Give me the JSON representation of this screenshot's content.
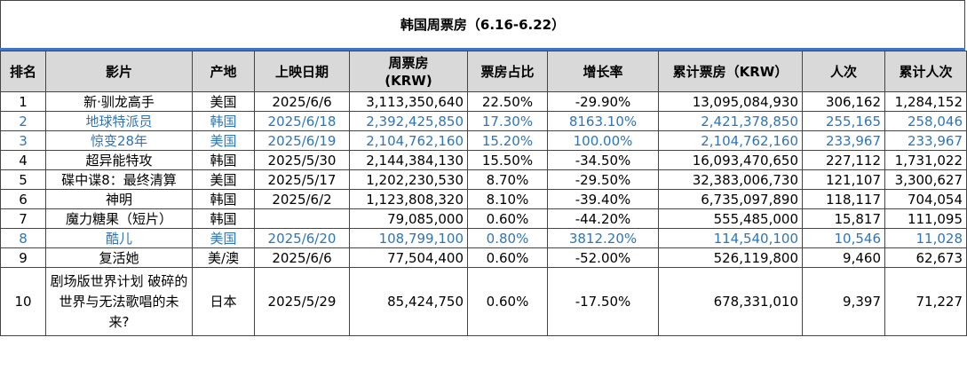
{
  "title": "韩国周票房（6.16-6.22）",
  "headers": {
    "rank": "排名",
    "film": "影片",
    "origin": "产地",
    "release": "上映日期",
    "weekly_line1": "周票房",
    "weekly_line2": "(KRW)",
    "share": "票房占比",
    "growth": "增长率",
    "cumulative": "累计票房（KRW）",
    "admissions": "人次",
    "cum_admissions": "累计人次"
  },
  "rows": [
    {
      "rank": "1",
      "film": "新·驯龙高手",
      "origin": "美国",
      "release": "2025/6/6",
      "weekly": "3,113,350,640",
      "share": "22.50%",
      "growth": "-29.90%",
      "cumulative": "13,095,084,930",
      "admissions": "306,162",
      "cum_admissions": "1,284,152",
      "new_entry": false
    },
    {
      "rank": "2",
      "film": "地球特派员",
      "origin": "韩国",
      "release": "2025/6/18",
      "weekly": "2,392,425,850",
      "share": "17.30%",
      "growth": "8163.10%",
      "cumulative": "2,421,378,850",
      "admissions": "255,165",
      "cum_admissions": "258,046",
      "new_entry": true
    },
    {
      "rank": "3",
      "film": "惊变28年",
      "origin": "美国",
      "release": "2025/6/19",
      "weekly": "2,104,762,160",
      "share": "15.20%",
      "growth": "100.00%",
      "cumulative": "2,104,762,160",
      "admissions": "233,967",
      "cum_admissions": "233,967",
      "new_entry": true
    },
    {
      "rank": "4",
      "film": "超异能特攻",
      "origin": "韩国",
      "release": "2025/5/30",
      "weekly": "2,144,384,130",
      "share": "15.50%",
      "growth": "-34.50%",
      "cumulative": "16,093,470,650",
      "admissions": "227,112",
      "cum_admissions": "1,731,022",
      "new_entry": false
    },
    {
      "rank": "5",
      "film": "碟中谍8：最终清算",
      "origin": "美国",
      "release": "2025/5/17",
      "weekly": "1,202,230,530",
      "share": "8.70%",
      "growth": "-29.50%",
      "cumulative": "32,383,006,730",
      "admissions": "121,107",
      "cum_admissions": "3,300,627",
      "new_entry": false
    },
    {
      "rank": "6",
      "film": "神明",
      "origin": "韩国",
      "release": "2025/6/2",
      "weekly": "1,123,808,320",
      "share": "8.10%",
      "growth": "-39.40%",
      "cumulative": "6,735,097,890",
      "admissions": "118,117",
      "cum_admissions": "704,054",
      "new_entry": false
    },
    {
      "rank": "7",
      "film": "魔力糖果（短片）",
      "origin": "韩国",
      "release": "",
      "weekly": "79,085,000",
      "share": "0.60%",
      "growth": "-44.20%",
      "cumulative": "555,485,000",
      "admissions": "15,817",
      "cum_admissions": "111,095",
      "new_entry": false
    },
    {
      "rank": "8",
      "film": "酷儿",
      "origin": "美国",
      "release": "2025/6/20",
      "weekly": "108,799,100",
      "share": "0.80%",
      "growth": "3812.20%",
      "cumulative": "114,540,100",
      "admissions": "10,546",
      "cum_admissions": "11,028",
      "new_entry": true
    },
    {
      "rank": "9",
      "film": "复活她",
      "origin": "美/澳",
      "release": "2025/6/6",
      "weekly": "77,504,400",
      "share": "0.60%",
      "growth": "-52.00%",
      "cumulative": "526,119,800",
      "admissions": "9,460",
      "cum_admissions": "62,673",
      "new_entry": false
    },
    {
      "rank": "10",
      "film": "剧场版世界计划 破碎的世界与无法歌唱的未来?",
      "origin": "日本",
      "release": "2025/5/29",
      "weekly": "85,424,750",
      "share": "0.60%",
      "growth": "-17.50%",
      "cumulative": "678,331,010",
      "admissions": "9,397",
      "cum_admissions": "71,227",
      "new_entry": false
    }
  ],
  "colors": {
    "header_bg": "#d9d9d9",
    "new_entry_text": "#2e75b6",
    "title_rule": "#4472c4",
    "border": "#444444"
  }
}
